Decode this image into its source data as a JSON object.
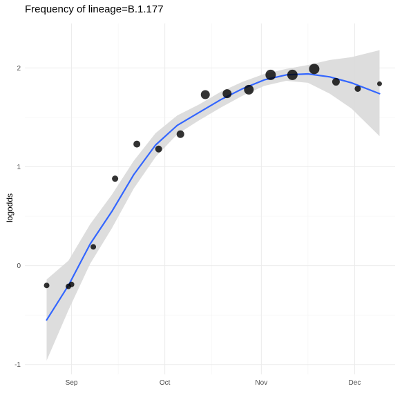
{
  "chart_data": {
    "type": "scatter",
    "title": "Frequency of lineage=B.1.177",
    "xlabel": "",
    "ylabel": "logodds",
    "x_ticks": [
      {
        "date": "2020-09-01",
        "label": "Sep"
      },
      {
        "date": "2020-10-01",
        "label": "Oct"
      },
      {
        "date": "2020-11-01",
        "label": "Nov"
      },
      {
        "date": "2020-12-01",
        "label": "Dec"
      }
    ],
    "xlim": [
      "2020-08-17",
      "2020-12-14"
    ],
    "ylim": [
      -1.1,
      2.45
    ],
    "y_ticks": [
      -1,
      0,
      1,
      2
    ],
    "grid": true,
    "legend": "none",
    "points": [
      {
        "x": "2020-08-24",
        "y": -0.2,
        "size": 4
      },
      {
        "x": "2020-08-31",
        "y": -0.21,
        "size": 4
      },
      {
        "x": "2020-09-01",
        "y": -0.19,
        "size": 4
      },
      {
        "x": "2020-09-08",
        "y": 0.19,
        "size": 4
      },
      {
        "x": "2020-09-15",
        "y": 0.88,
        "size": 4.5
      },
      {
        "x": "2020-09-22",
        "y": 1.23,
        "size": 5
      },
      {
        "x": "2020-09-29",
        "y": 1.18,
        "size": 5
      },
      {
        "x": "2020-10-06",
        "y": 1.33,
        "size": 5.5
      },
      {
        "x": "2020-10-14",
        "y": 1.73,
        "size": 6.5
      },
      {
        "x": "2020-10-21",
        "y": 1.74,
        "size": 6.5
      },
      {
        "x": "2020-10-28",
        "y": 1.78,
        "size": 7
      },
      {
        "x": "2020-11-04",
        "y": 1.93,
        "size": 7.5
      },
      {
        "x": "2020-11-11",
        "y": 1.93,
        "size": 7.5
      },
      {
        "x": "2020-11-18",
        "y": 1.99,
        "size": 7.5
      },
      {
        "x": "2020-11-25",
        "y": 1.86,
        "size": 5.5
      },
      {
        "x": "2020-12-02",
        "y": 1.79,
        "size": 4.5
      },
      {
        "x": "2020-12-09",
        "y": 1.84,
        "size": 3.5
      }
    ],
    "smooth": {
      "color": "#3366ff",
      "ribbon_color": "#d9d9d9",
      "x": [
        "2020-08-24",
        "2020-08-31",
        "2020-09-07",
        "2020-09-14",
        "2020-09-21",
        "2020-09-28",
        "2020-10-05",
        "2020-10-12",
        "2020-10-19",
        "2020-10-26",
        "2020-11-02",
        "2020-11-09",
        "2020-11-16",
        "2020-11-23",
        "2020-11-30",
        "2020-12-09"
      ],
      "y": [
        -0.55,
        -0.2,
        0.22,
        0.55,
        0.92,
        1.22,
        1.42,
        1.55,
        1.68,
        1.79,
        1.88,
        1.93,
        1.94,
        1.91,
        1.85,
        1.74
      ],
      "lower": [
        -0.96,
        -0.45,
        0.02,
        0.38,
        0.78,
        1.1,
        1.33,
        1.47,
        1.6,
        1.72,
        1.82,
        1.87,
        1.85,
        1.74,
        1.59,
        1.31
      ],
      "upper": [
        -0.14,
        0.05,
        0.42,
        0.72,
        1.06,
        1.34,
        1.52,
        1.63,
        1.76,
        1.86,
        1.94,
        1.99,
        2.03,
        2.08,
        2.11,
        2.18
      ]
    }
  }
}
